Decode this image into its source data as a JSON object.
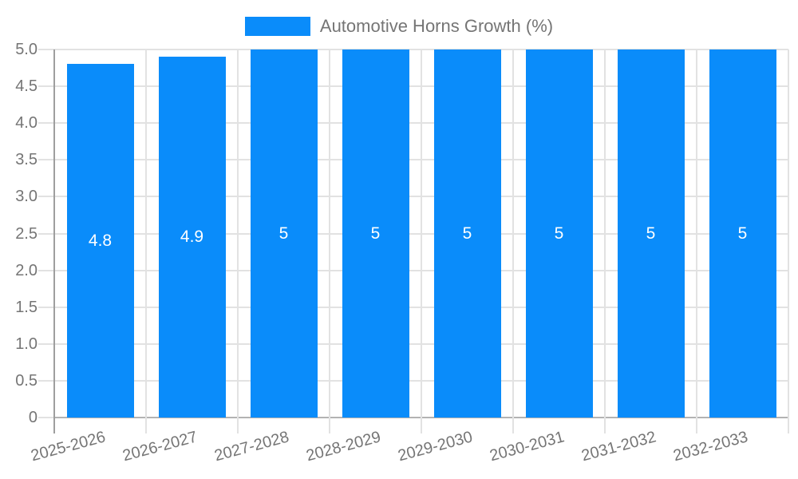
{
  "chart_data": {
    "type": "bar",
    "title": "",
    "legend_label": "Automotive Horns Growth (%)",
    "legend_position": "top",
    "categories": [
      "2025-2026",
      "2026-2027",
      "2027-2028",
      "2028-2029",
      "2029-2030",
      "2030-2031",
      "2031-2032",
      "2032-2033"
    ],
    "series": [
      {
        "name": "Automotive Horns Growth (%)",
        "values": [
          4.8,
          4.9,
          5,
          5,
          5,
          5,
          5,
          5
        ]
      }
    ],
    "value_labels": [
      "4.8",
      "4.9",
      "5",
      "5",
      "5",
      "5",
      "5",
      "5"
    ],
    "y_ticks": [
      {
        "label": "5.0",
        "value": 5.0
      },
      {
        "label": "4.5",
        "value": 4.5
      },
      {
        "label": "4.0",
        "value": 4.0
      },
      {
        "label": "3.5",
        "value": 3.5
      },
      {
        "label": "3.0",
        "value": 3.0
      },
      {
        "label": "2.5",
        "value": 2.5
      },
      {
        "label": "2.0",
        "value": 2.0
      },
      {
        "label": "1.5",
        "value": 1.5
      },
      {
        "label": "1.0",
        "value": 1.0
      },
      {
        "label": "0.5",
        "value": 0.5
      },
      {
        "label": "0",
        "value": 0
      }
    ],
    "xlabel": "",
    "ylabel": "",
    "ylim": [
      0,
      5
    ],
    "grid": true,
    "bar_color": "#0a8cfa"
  },
  "colors": {
    "background": "#ffffff",
    "grid": "#e2e2e2",
    "axis": "#9e9e9e",
    "baseline": "#b3b3b3",
    "text": "#757575",
    "bar_label": "#ffffff"
  }
}
